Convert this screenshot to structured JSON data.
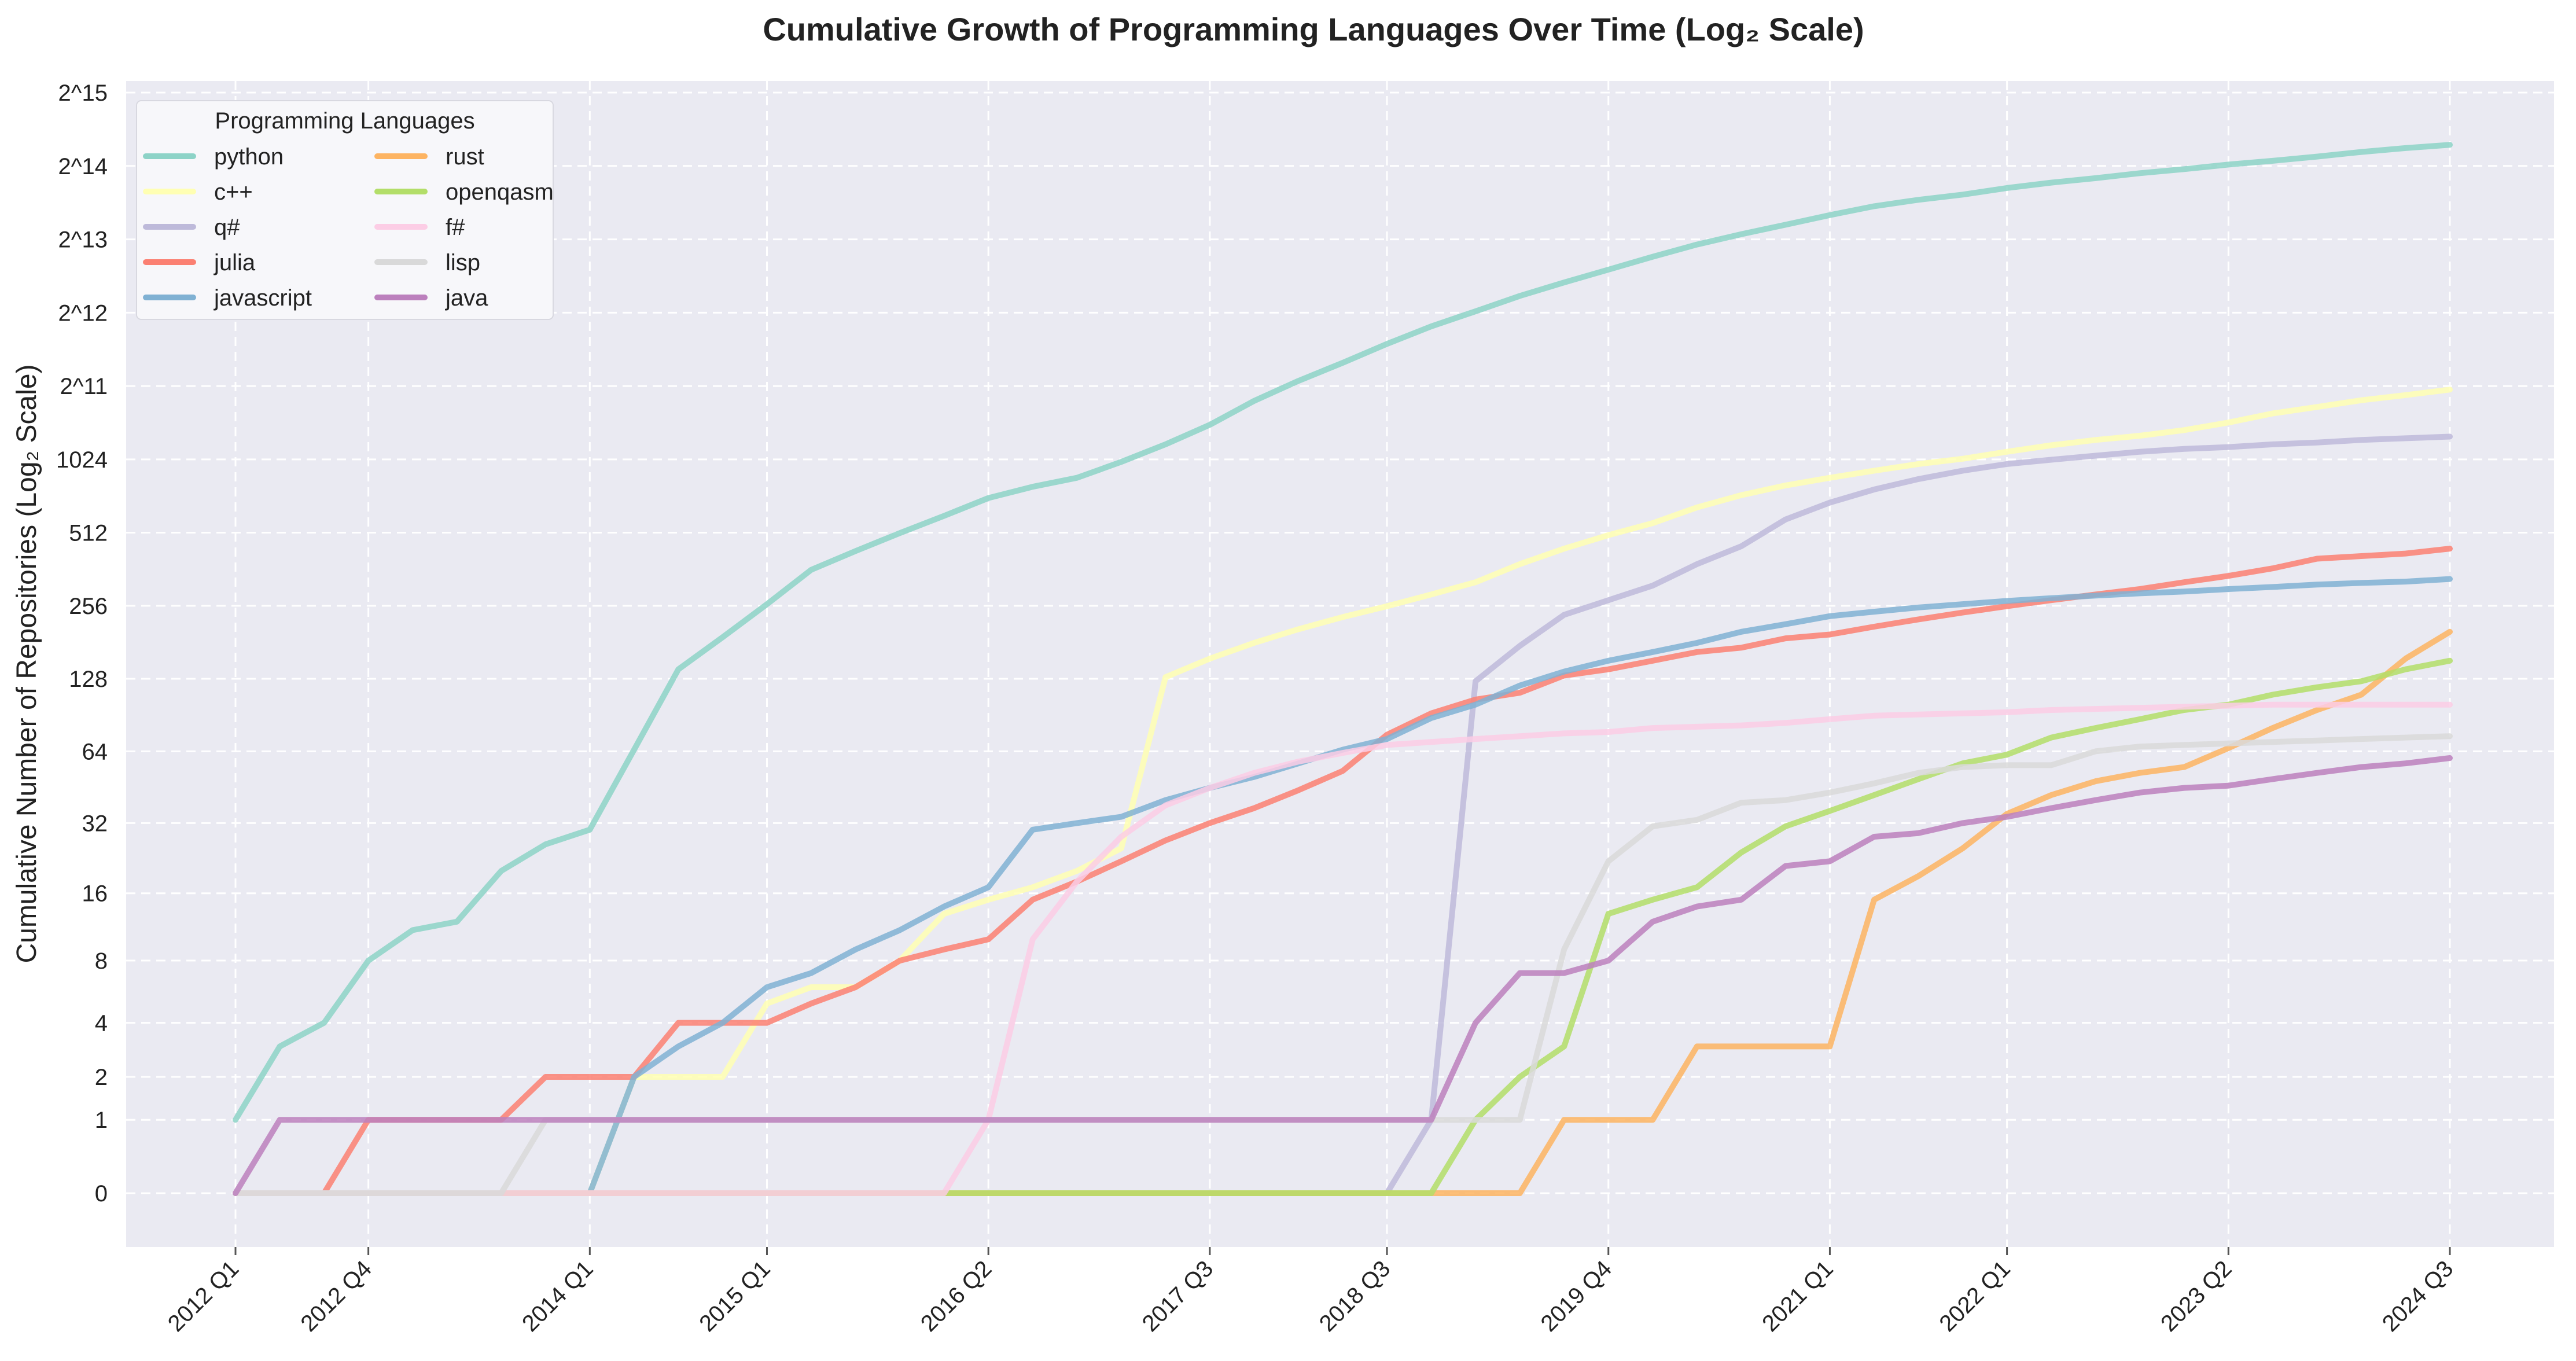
{
  "colors": {
    "background": "#ffffff",
    "plot_background": "#eaeaf2",
    "grid": "#ffffff"
  },
  "chart_data": {
    "type": "line",
    "title": "Cumulative Growth of Programming Languages Over Time (Log₂ Scale)",
    "xlabel": "",
    "ylabel": "Cumulative Number of Repositories (Log₂ Scale)",
    "yscale": "symlog base 2",
    "grid": true,
    "legend": {
      "title": "Programming Languages",
      "placement": "top-left",
      "columns": 2
    },
    "x_ticks": [
      "2012 Q1",
      "2012 Q4",
      "2014 Q1",
      "2015 Q1",
      "2016 Q2",
      "2017 Q3",
      "2018 Q3",
      "2019 Q4",
      "2021 Q1",
      "2022 Q1",
      "2023 Q2",
      "2024 Q3"
    ],
    "y_ticks": [
      {
        "value": 0,
        "label": "0"
      },
      {
        "value": 1,
        "label": "1"
      },
      {
        "value": 2,
        "label": "2"
      },
      {
        "value": 4,
        "label": "4"
      },
      {
        "value": 8,
        "label": "8"
      },
      {
        "value": 16,
        "label": "16"
      },
      {
        "value": 32,
        "label": "32"
      },
      {
        "value": 64,
        "label": "64"
      },
      {
        "value": 128,
        "label": "128"
      },
      {
        "value": 256,
        "label": "256"
      },
      {
        "value": 512,
        "label": "512"
      },
      {
        "value": 1024,
        "label": "1024"
      },
      {
        "value": 2048,
        "label": "2^11"
      },
      {
        "value": 4096,
        "label": "2^12"
      },
      {
        "value": 8192,
        "label": "2^13"
      },
      {
        "value": 16384,
        "label": "2^14"
      },
      {
        "value": 32768,
        "label": "2^15"
      }
    ],
    "x": [
      "2012 Q1",
      "2012 Q2",
      "2012 Q3",
      "2012 Q4",
      "2013 Q1",
      "2013 Q2",
      "2013 Q3",
      "2013 Q4",
      "2014 Q1",
      "2014 Q2",
      "2014 Q3",
      "2014 Q4",
      "2015 Q1",
      "2015 Q2",
      "2015 Q3",
      "2015 Q4",
      "2016 Q1",
      "2016 Q2",
      "2016 Q3",
      "2016 Q4",
      "2017 Q1",
      "2017 Q2",
      "2017 Q3",
      "2017 Q4",
      "2018 Q1",
      "2018 Q2",
      "2018 Q3",
      "2018 Q4",
      "2019 Q1",
      "2019 Q2",
      "2019 Q3",
      "2019 Q4",
      "2020 Q1",
      "2020 Q2",
      "2020 Q3",
      "2020 Q4",
      "2021 Q1",
      "2021 Q2",
      "2021 Q3",
      "2021 Q4",
      "2022 Q1",
      "2022 Q2",
      "2022 Q3",
      "2022 Q4",
      "2023 Q1",
      "2023 Q2",
      "2023 Q3",
      "2023 Q4",
      "2024 Q1",
      "2024 Q2",
      "2024 Q3"
    ],
    "series": [
      {
        "name": "python",
        "color": "#8dd3c7",
        "values": [
          1,
          3,
          4,
          8,
          11,
          12,
          20,
          26,
          30,
          65,
          140,
          190,
          260,
          360,
          430,
          510,
          600,
          710,
          790,
          860,
          1000,
          1180,
          1420,
          1780,
          2150,
          2550,
          3050,
          3600,
          4150,
          4800,
          5450,
          6150,
          6950,
          7800,
          8600,
          9400,
          10300,
          11200,
          11900,
          12500,
          13300,
          14000,
          14600,
          15300,
          15900,
          16600,
          17200,
          17900,
          18700,
          19400,
          20000
        ]
      },
      {
        "name": "c++",
        "color": "#ffffb3",
        "values": [
          0,
          0,
          0,
          0,
          0,
          0,
          0,
          0,
          0,
          2,
          2,
          2,
          5,
          6,
          6,
          8,
          13,
          15,
          17,
          20,
          25,
          130,
          155,
          180,
          205,
          230,
          255,
          285,
          320,
          380,
          440,
          500,
          560,
          650,
          730,
          800,
          860,
          920,
          980,
          1030,
          1100,
          1170,
          1230,
          1280,
          1350,
          1450,
          1580,
          1680,
          1790,
          1880,
          1980
        ]
      },
      {
        "name": "q#",
        "color": "#bebada",
        "values": [
          0,
          0,
          0,
          0,
          0,
          0,
          0,
          0,
          0,
          0,
          0,
          0,
          0,
          0,
          0,
          0,
          0,
          0,
          0,
          0,
          0,
          0,
          0,
          0,
          0,
          0,
          0,
          1,
          125,
          175,
          235,
          270,
          310,
          380,
          450,
          580,
          680,
          770,
          850,
          920,
          980,
          1020,
          1060,
          1100,
          1130,
          1150,
          1180,
          1200,
          1230,
          1250,
          1270
        ]
      },
      {
        "name": "julia",
        "color": "#fb8072",
        "values": [
          0,
          0,
          0,
          1,
          1,
          1,
          1,
          2,
          2,
          2,
          4,
          4,
          4,
          5,
          6,
          8,
          9,
          10,
          15,
          18,
          22,
          27,
          32,
          37,
          44,
          53,
          75,
          92,
          105,
          112,
          132,
          140,
          152,
          165,
          172,
          188,
          195,
          210,
          225,
          240,
          255,
          270,
          285,
          300,
          320,
          340,
          365,
          400,
          410,
          420,
          440
        ]
      },
      {
        "name": "javascript",
        "color": "#80b1d3",
        "values": [
          0,
          0,
          0,
          0,
          0,
          0,
          0,
          0,
          0,
          2,
          3,
          4,
          6,
          7,
          9,
          11,
          14,
          17,
          30,
          32,
          34,
          40,
          45,
          50,
          57,
          65,
          72,
          88,
          100,
          120,
          137,
          152,
          165,
          180,
          200,
          215,
          232,
          242,
          252,
          260,
          268,
          275,
          282,
          288,
          293,
          300,
          306,
          313,
          318,
          322,
          330
        ]
      },
      {
        "name": "rust",
        "color": "#fdb462",
        "values": [
          0,
          0,
          0,
          0,
          0,
          0,
          0,
          0,
          0,
          0,
          0,
          0,
          0,
          0,
          0,
          0,
          0,
          0,
          0,
          0,
          0,
          0,
          0,
          0,
          0,
          0,
          0,
          0,
          0,
          0,
          1,
          1,
          1,
          3,
          3,
          3,
          3,
          15,
          19,
          25,
          35,
          42,
          48,
          52,
          55,
          66,
          80,
          95,
          110,
          155,
          200
        ]
      },
      {
        "name": "openqasm",
        "color": "#b3de69",
        "values": [
          0,
          0,
          0,
          0,
          0,
          0,
          0,
          0,
          0,
          0,
          0,
          0,
          0,
          0,
          0,
          0,
          0,
          0,
          0,
          0,
          0,
          0,
          0,
          0,
          0,
          0,
          0,
          0,
          1,
          2,
          3,
          13,
          15,
          17,
          24,
          31,
          36,
          42,
          49,
          57,
          62,
          73,
          80,
          87,
          95,
          100,
          110,
          118,
          125,
          140,
          152
        ]
      },
      {
        "name": "f#",
        "color": "#fccde5",
        "values": [
          0,
          0,
          0,
          0,
          0,
          0,
          0,
          0,
          0,
          0,
          0,
          0,
          0,
          0,
          0,
          0,
          0,
          1,
          10,
          18,
          28,
          38,
          45,
          52,
          58,
          63,
          68,
          70,
          72,
          74,
          76,
          77,
          80,
          81,
          82,
          84,
          87,
          90,
          91,
          92,
          93,
          95,
          96,
          97,
          98,
          99,
          100,
          100,
          100,
          100,
          100
        ]
      },
      {
        "name": "lisp",
        "color": "#d9d9d9",
        "values": [
          0,
          0,
          0,
          0,
          0,
          0,
          0,
          1,
          1,
          1,
          1,
          1,
          1,
          1,
          1,
          1,
          1,
          1,
          1,
          1,
          1,
          1,
          1,
          1,
          1,
          1,
          1,
          1,
          1,
          1,
          9,
          22,
          31,
          33,
          39,
          40,
          43,
          47,
          52,
          55,
          56,
          56,
          64,
          67,
          68,
          69,
          70,
          71,
          72,
          73,
          74
        ]
      },
      {
        "name": "java",
        "color": "#bc80bd",
        "values": [
          0,
          1,
          1,
          1,
          1,
          1,
          1,
          1,
          1,
          1,
          1,
          1,
          1,
          1,
          1,
          1,
          1,
          1,
          1,
          1,
          1,
          1,
          1,
          1,
          1,
          1,
          1,
          1,
          4,
          7,
          7,
          8,
          12,
          14,
          15,
          21,
          22,
          28,
          29,
          32,
          34,
          37,
          40,
          43,
          45,
          46,
          49,
          52,
          55,
          57,
          60
        ]
      }
    ]
  }
}
